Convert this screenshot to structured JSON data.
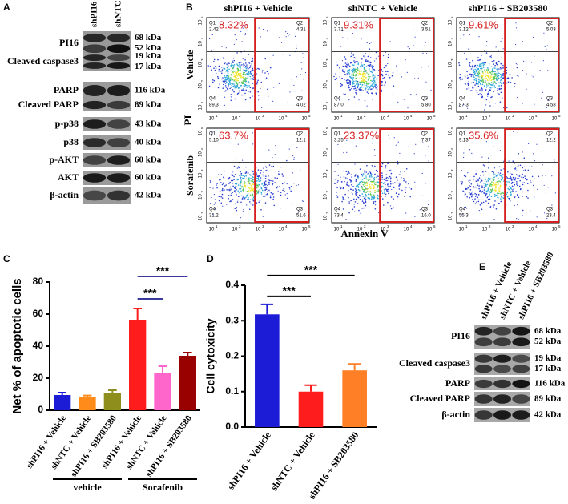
{
  "panel_labels": [
    "A",
    "B",
    "C",
    "D",
    "E"
  ],
  "blot_a": {
    "lanes": [
      "shPI16",
      "shNTC"
    ],
    "rows": [
      {
        "label": "PI16",
        "sizes": [
          "68 kDa",
          "52 kDa"
        ]
      },
      {
        "label": "Cleaved caspase3",
        "sizes": [
          "19 kDa",
          "17 kDa"
        ]
      },
      {
        "label": "PARP",
        "sizes": [
          "116 kDa"
        ]
      },
      {
        "label": "Cleaved PARP",
        "sizes": [
          "89 kDa"
        ]
      },
      {
        "label": "p-p38",
        "sizes": [
          "43 kDa"
        ]
      },
      {
        "label": "p38",
        "sizes": [
          "40 kDa"
        ]
      },
      {
        "label": "p-AKT",
        "sizes": [
          "60 kDa"
        ]
      },
      {
        "label": "AKT",
        "sizes": [
          "60 kDa"
        ]
      },
      {
        "label": "β-actin",
        "sizes": [
          "42 kDa"
        ]
      }
    ]
  },
  "flow_b": {
    "columns": [
      "shPI16 + Vehicle",
      "shNTC + Vehicle",
      "shPI16 + SB203580"
    ],
    "rows": [
      "Vehicle",
      "Sorafenib"
    ],
    "y_label": "PI",
    "x_label": "Annexin V",
    "tick_base": "10",
    "x_tick_exponents": [
      "1",
      "2",
      "3",
      "4",
      "5"
    ],
    "y_tick_exponents": [
      "1",
      "2",
      "3",
      "4",
      "5"
    ],
    "quadrant_names": [
      "Q1",
      "Q2",
      "Q3",
      "Q4"
    ],
    "plots": [
      {
        "percent": "8.32%",
        "quadrants": [
          "2.42",
          "4.31",
          "4.02",
          "89.3"
        ]
      },
      {
        "percent": "9.31%",
        "quadrants": [
          "3.71",
          "3.51",
          "5.80",
          "87.0"
        ]
      },
      {
        "percent": "9.61%",
        "quadrants": [
          "3.12",
          "5.03",
          "4.58",
          "87.3"
        ]
      },
      {
        "percent": "63.7%",
        "quadrants": [
          "5.10",
          "12.1",
          "51.6",
          "31.2"
        ]
      },
      {
        "percent": "23.37%",
        "quadrants": [
          "3.25",
          "7.37",
          "16.0",
          "73.4"
        ]
      },
      {
        "percent": "35.6%",
        "quadrants": [
          "9.13",
          "12.2",
          "23.4",
          "55.3"
        ]
      }
    ]
  },
  "chart_data": [
    {
      "type": "bar",
      "y_label": "Net % of apoptotic cells",
      "categories": [
        "shPI16 + Vehicle",
        "shNTC + Vehicle",
        "shPI16 + SB203580",
        "shPI16 + Vehicle",
        "shNTC + Vehicle",
        "shPI16 + SB203580"
      ],
      "values": [
        9.5,
        8,
        11,
        56.5,
        23,
        34
      ],
      "errors": [
        1.5,
        1.2,
        1.5,
        7,
        4.5,
        2
      ],
      "colors": [
        "#1c1cd6",
        "#ff8c1a",
        "#8e8e1c",
        "#ff1c1c",
        "#ff66cc",
        "#990000"
      ],
      "ylim": [
        0,
        80
      ],
      "yticks": [
        0,
        20,
        40,
        60,
        80
      ],
      "groups": [
        "vehicle",
        "Sorafenib"
      ],
      "significance": [
        {
          "from": 3,
          "to": 4,
          "label": "***"
        },
        {
          "from": 3,
          "to": 5,
          "label": "***"
        }
      ],
      "bracket_color": "#3a3a9c"
    },
    {
      "type": "bar",
      "y_label": "Cell cytoxicity",
      "categories": [
        "shPI16 + Vehicle",
        "shNTC + Vehicle",
        "shPI16 + SB203580"
      ],
      "values": [
        0.318,
        0.1,
        0.16
      ],
      "errors": [
        0.028,
        0.018,
        0.018
      ],
      "colors": [
        "#1c1cd6",
        "#ff1c1c",
        "#ff7f27"
      ],
      "ylim": [
        0,
        0.4
      ],
      "yticks": [
        {
          "value": 0,
          "label": "0.0"
        },
        0.1,
        0.2,
        0.3,
        0.4
      ],
      "significance": [
        {
          "from": 0,
          "to": 1,
          "label": "***"
        },
        {
          "from": 0,
          "to": 2,
          "label": "***"
        }
      ],
      "bracket_color": "#000000"
    }
  ],
  "blot_e": {
    "lanes": [
      "shPI16 + Vehicle",
      "shNTC + Vehicle",
      "shPI16 + SB203580"
    ],
    "rows": [
      {
        "label": "PI16",
        "sizes": [
          "68 kDa",
          "52 kDa"
        ]
      },
      {
        "label": "Cleaved caspase3",
        "sizes": [
          "19 kDa",
          "17 kDa"
        ]
      },
      {
        "label": "PARP",
        "sizes": [
          "116 kDa"
        ]
      },
      {
        "label": "Cleaved PARP",
        "sizes": [
          "89 kDa"
        ]
      },
      {
        "label": "β-actin",
        "sizes": [
          "42 kDa"
        ]
      }
    ]
  }
}
